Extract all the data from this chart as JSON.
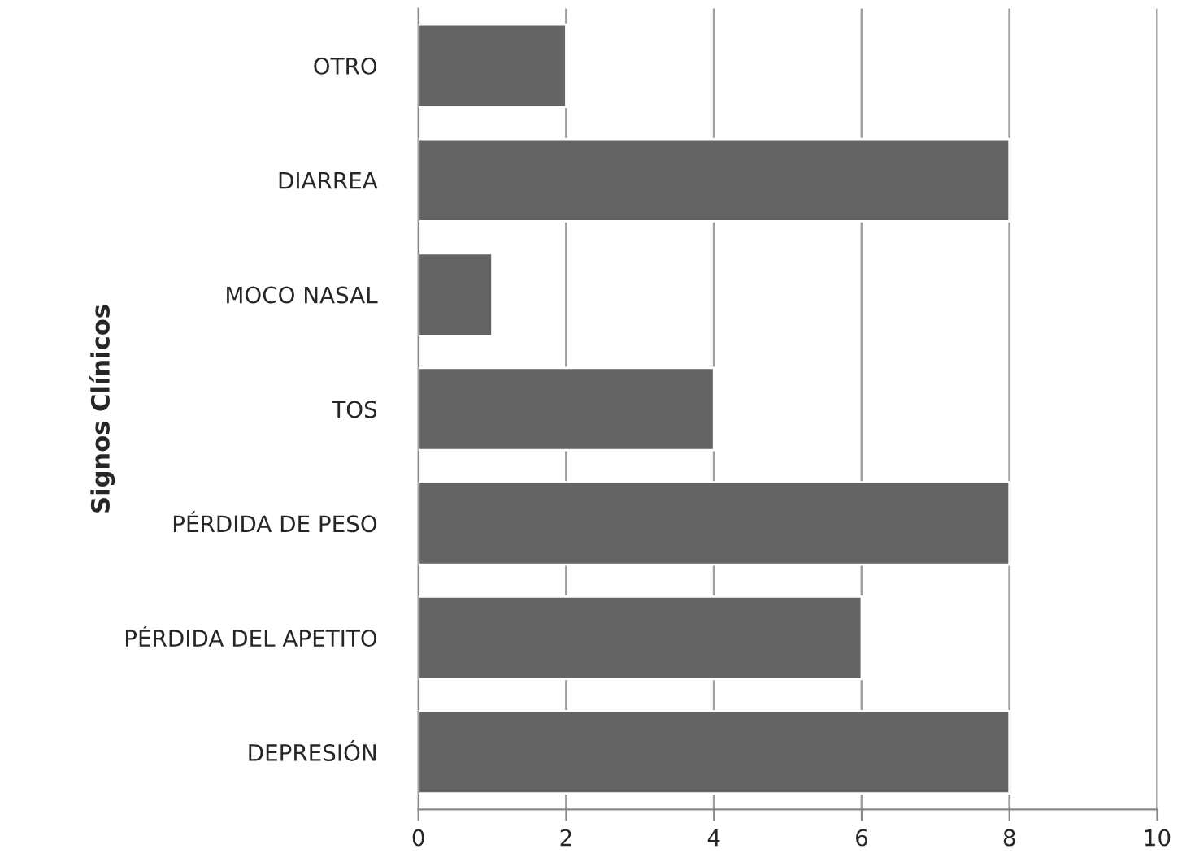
{
  "chart_data": {
    "type": "bar",
    "orientation": "horizontal",
    "ylabel": "Signos Clínicos",
    "categories": [
      "OTRO",
      "DIARREA",
      "MOCO NASAL",
      "TOS",
      "PÉRDIDA DE PESO",
      "PÉRDIDA DEL APETITO",
      "DEPRESIÓN"
    ],
    "values": [
      2,
      8,
      1,
      4,
      8,
      6,
      8
    ],
    "color": "#646464",
    "xlim": [
      0,
      10
    ],
    "xticks": [
      0,
      2,
      4,
      6,
      8,
      10
    ],
    "grid": "x",
    "legend": false
  }
}
